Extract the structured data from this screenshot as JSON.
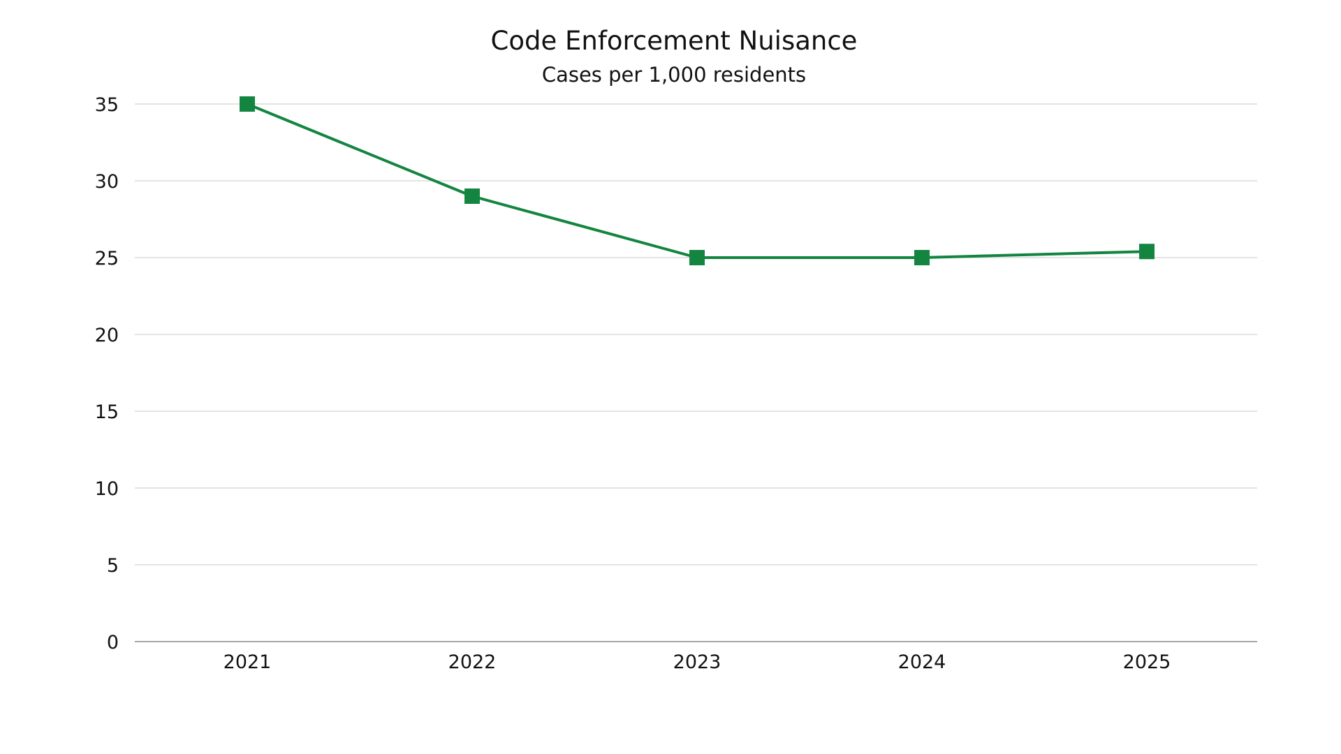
{
  "chart_data": {
    "type": "line",
    "title": "Code Enforcement Nuisance",
    "subtitle": "Cases per 1,000 residents",
    "xlabel": "",
    "ylabel": "",
    "categories": [
      "2021",
      "2022",
      "2023",
      "2024",
      "2025"
    ],
    "series": [
      {
        "values": [
          35,
          29,
          25,
          25,
          25.4
        ],
        "color": "#138540",
        "marker": "square"
      }
    ],
    "ylim": [
      0,
      35
    ],
    "yticks": [
      0,
      5,
      10,
      15,
      20,
      25,
      30,
      35
    ],
    "grid": true,
    "legend": "none"
  }
}
